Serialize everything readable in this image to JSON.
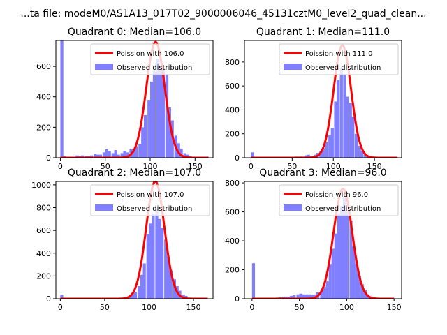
{
  "figure": {
    "suptitle": "...ta file: modeM0/AS1A13_017T02_9000006046_45131cztM0_level2_quad_clean...",
    "colors": {
      "hist": "#7f7fff",
      "fit": "#ff0000"
    }
  },
  "chart_data": [
    {
      "type": "bar",
      "title": "Quadrant 0: Median=106.0",
      "legend": [
        "Poission with 106.0",
        "Observed distribution"
      ],
      "legend_position": "top-right",
      "median": 106.0,
      "xlim": [
        -5,
        170
      ],
      "ylim": [
        0,
        770
      ],
      "xticks": [
        0,
        50,
        100,
        150
      ],
      "yticks": [
        0,
        200,
        400,
        600
      ],
      "bin_width": 3.3,
      "bins": [
        [
          0,
          770
        ],
        [
          3,
          10
        ],
        [
          7,
          5
        ],
        [
          10,
          5
        ],
        [
          13,
          5
        ],
        [
          17,
          15
        ],
        [
          20,
          10
        ],
        [
          23,
          15
        ],
        [
          27,
          10
        ],
        [
          30,
          10
        ],
        [
          33,
          15
        ],
        [
          37,
          25
        ],
        [
          40,
          20
        ],
        [
          43,
          20
        ],
        [
          47,
          35
        ],
        [
          50,
          55
        ],
        [
          53,
          45
        ],
        [
          57,
          30
        ],
        [
          60,
          50
        ],
        [
          63,
          20
        ],
        [
          67,
          30
        ],
        [
          70,
          45
        ],
        [
          73,
          35
        ],
        [
          77,
          55
        ],
        [
          80,
          60
        ],
        [
          83,
          75
        ],
        [
          87,
          90
        ],
        [
          90,
          200
        ],
        [
          93,
          280
        ],
        [
          97,
          380
        ],
        [
          100,
          500
        ],
        [
          103,
          570
        ],
        [
          107,
          650
        ],
        [
          110,
          590
        ],
        [
          113,
          590
        ],
        [
          117,
          550
        ],
        [
          120,
          330
        ],
        [
          123,
          245
        ],
        [
          127,
          145
        ],
        [
          130,
          95
        ],
        [
          133,
          60
        ],
        [
          137,
          30
        ],
        [
          140,
          20
        ],
        [
          143,
          10
        ],
        [
          147,
          5
        ],
        [
          150,
          3
        ]
      ],
      "fit": {
        "peak": 760,
        "sigma": 10.3,
        "x_range": [
          0,
          165
        ]
      }
    },
    {
      "type": "bar",
      "title": "Quadrant 1: Median=111.0",
      "legend": [
        "Poission with 111.0",
        "Observed distribution"
      ],
      "legend_position": "top-right",
      "median": 111.0,
      "xlim": [
        -8,
        183
      ],
      "ylim": [
        0,
        980
      ],
      "xticks": [
        0,
        50,
        100,
        150
      ],
      "yticks": [
        0,
        200,
        400,
        600,
        800
      ],
      "bin_width": 3.6,
      "bins": [
        [
          0,
          45
        ],
        [
          4,
          5
        ],
        [
          7,
          3
        ],
        [
          11,
          3
        ],
        [
          14,
          3
        ],
        [
          18,
          3
        ],
        [
          22,
          3
        ],
        [
          25,
          3
        ],
        [
          29,
          3
        ],
        [
          32,
          3
        ],
        [
          36,
          5
        ],
        [
          40,
          5
        ],
        [
          43,
          5
        ],
        [
          47,
          5
        ],
        [
          50,
          5
        ],
        [
          54,
          10
        ],
        [
          58,
          10
        ],
        [
          61,
          10
        ],
        [
          65,
          20
        ],
        [
          68,
          25
        ],
        [
          72,
          15
        ],
        [
          76,
          25
        ],
        [
          79,
          40
        ],
        [
          83,
          55
        ],
        [
          86,
          80
        ],
        [
          90,
          130
        ],
        [
          94,
          190
        ],
        [
          97,
          250
        ],
        [
          101,
          470
        ],
        [
          104,
          650
        ],
        [
          108,
          750
        ],
        [
          112,
          700
        ],
        [
          115,
          510
        ],
        [
          119,
          460
        ],
        [
          122,
          345
        ],
        [
          126,
          200
        ],
        [
          130,
          100
        ],
        [
          133,
          60
        ],
        [
          137,
          30
        ],
        [
          140,
          20
        ],
        [
          144,
          10
        ],
        [
          148,
          5
        ],
        [
          151,
          3
        ],
        [
          155,
          3
        ]
      ],
      "fit": {
        "peak": 940,
        "sigma": 10.6,
        "x_range": [
          0,
          178
        ]
      }
    },
    {
      "type": "bar",
      "title": "Quadrant 2: Median=107.0",
      "legend": [
        "Poission with 107.0",
        "Observed distribution"
      ],
      "legend_position": "top-right",
      "median": 107.0,
      "xlim": [
        -5,
        172
      ],
      "ylim": [
        0,
        1030
      ],
      "xticks": [
        0,
        50,
        100,
        150
      ],
      "yticks": [
        0,
        200,
        400,
        600,
        800,
        1000
      ],
      "bin_width": 3.3,
      "bins": [
        [
          0,
          35
        ],
        [
          3,
          5
        ],
        [
          7,
          3
        ],
        [
          10,
          3
        ],
        [
          13,
          3
        ],
        [
          17,
          3
        ],
        [
          20,
          3
        ],
        [
          23,
          3
        ],
        [
          27,
          3
        ],
        [
          30,
          3
        ],
        [
          33,
          3
        ],
        [
          37,
          3
        ],
        [
          40,
          3
        ],
        [
          43,
          3
        ],
        [
          47,
          3
        ],
        [
          50,
          3
        ],
        [
          53,
          3
        ],
        [
          57,
          5
        ],
        [
          60,
          5
        ],
        [
          63,
          5
        ],
        [
          67,
          5
        ],
        [
          70,
          10
        ],
        [
          73,
          10
        ],
        [
          77,
          20
        ],
        [
          80,
          50
        ],
        [
          83,
          60
        ],
        [
          87,
          110
        ],
        [
          90,
          210
        ],
        [
          93,
          310
        ],
        [
          97,
          570
        ],
        [
          100,
          660
        ],
        [
          103,
          750
        ],
        [
          107,
          790
        ],
        [
          110,
          700
        ],
        [
          113,
          625
        ],
        [
          117,
          520
        ],
        [
          120,
          370
        ],
        [
          123,
          250
        ],
        [
          127,
          170
        ],
        [
          130,
          110
        ],
        [
          133,
          70
        ],
        [
          137,
          35
        ],
        [
          140,
          25
        ],
        [
          143,
          10
        ],
        [
          147,
          5
        ],
        [
          150,
          3
        ]
      ],
      "fit": {
        "peak": 1030,
        "sigma": 10.3,
        "x_range": [
          0,
          166
        ]
      }
    },
    {
      "type": "bar",
      "title": "Quadrant 3: Median=96.0",
      "legend": [
        "Poission with 96.0",
        "Observed distribution"
      ],
      "legend_position": "top-right",
      "median": 96.0,
      "xlim": [
        -8,
        158
      ],
      "ylim": [
        0,
        810
      ],
      "xticks": [
        0,
        50,
        100,
        150
      ],
      "yticks": [
        0,
        200,
        400,
        600,
        800
      ],
      "bin_width": 3.1,
      "bins": [
        [
          0,
          245
        ],
        [
          3,
          5
        ],
        [
          6,
          3
        ],
        [
          9,
          3
        ],
        [
          12,
          3
        ],
        [
          15,
          5
        ],
        [
          19,
          5
        ],
        [
          22,
          5
        ],
        [
          25,
          8
        ],
        [
          28,
          10
        ],
        [
          31,
          10
        ],
        [
          34,
          15
        ],
        [
          37,
          15
        ],
        [
          40,
          20
        ],
        [
          43,
          25
        ],
        [
          47,
          30
        ],
        [
          50,
          35
        ],
        [
          53,
          30
        ],
        [
          56,
          30
        ],
        [
          59,
          30
        ],
        [
          62,
          25
        ],
        [
          65,
          30
        ],
        [
          68,
          45
        ],
        [
          72,
          60
        ],
        [
          75,
          80
        ],
        [
          78,
          120
        ],
        [
          81,
          240
        ],
        [
          84,
          345
        ],
        [
          87,
          450
        ],
        [
          90,
          590
        ],
        [
          93,
          640
        ],
        [
          96,
          700
        ],
        [
          99,
          600
        ],
        [
          103,
          540
        ],
        [
          106,
          360
        ],
        [
          109,
          240
        ],
        [
          112,
          160
        ],
        [
          115,
          100
        ],
        [
          118,
          60
        ],
        [
          121,
          30
        ],
        [
          124,
          15
        ],
        [
          127,
          8
        ],
        [
          131,
          5
        ],
        [
          134,
          3
        ]
      ],
      "fit": {
        "peak": 760,
        "sigma": 9.8,
        "x_range": [
          0,
          150
        ]
      }
    }
  ]
}
